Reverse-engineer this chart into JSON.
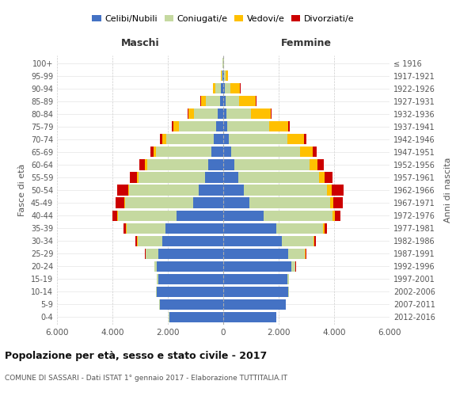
{
  "age_groups": [
    "0-4",
    "5-9",
    "10-14",
    "15-19",
    "20-24",
    "25-29",
    "30-34",
    "35-39",
    "40-44",
    "45-49",
    "50-54",
    "55-59",
    "60-64",
    "65-69",
    "70-74",
    "75-79",
    "80-84",
    "85-89",
    "90-94",
    "95-99",
    "100+"
  ],
  "birth_years": [
    "2012-2016",
    "2007-2011",
    "2002-2006",
    "1997-2001",
    "1992-1996",
    "1987-1991",
    "1982-1986",
    "1977-1981",
    "1972-1976",
    "1967-1971",
    "1962-1966",
    "1957-1961",
    "1952-1956",
    "1947-1951",
    "1942-1946",
    "1937-1941",
    "1932-1936",
    "1927-1931",
    "1922-1926",
    "1917-1921",
    "≤ 1916"
  ],
  "male": {
    "celibi": [
      1950,
      2300,
      2400,
      2350,
      2400,
      2350,
      2200,
      2100,
      1700,
      1100,
      900,
      650,
      550,
      420,
      350,
      250,
      200,
      120,
      80,
      30,
      10
    ],
    "coniugati": [
      10,
      20,
      30,
      50,
      80,
      450,
      900,
      1400,
      2100,
      2450,
      2500,
      2400,
      2200,
      2000,
      1700,
      1350,
      850,
      500,
      200,
      40,
      10
    ],
    "vedovi": [
      0,
      0,
      0,
      0,
      5,
      10,
      10,
      15,
      20,
      30,
      40,
      60,
      80,
      100,
      150,
      200,
      200,
      180,
      80,
      20,
      5
    ],
    "divorziati": [
      0,
      0,
      0,
      5,
      10,
      30,
      50,
      80,
      180,
      300,
      380,
      250,
      200,
      120,
      80,
      50,
      40,
      20,
      5,
      0,
      0
    ]
  },
  "female": {
    "nubili": [
      1900,
      2250,
      2350,
      2300,
      2450,
      2350,
      2100,
      1900,
      1450,
      950,
      750,
      550,
      400,
      280,
      200,
      150,
      100,
      80,
      60,
      30,
      10
    ],
    "coniugate": [
      10,
      20,
      30,
      60,
      150,
      600,
      1150,
      1700,
      2500,
      2900,
      3000,
      2900,
      2700,
      2500,
      2100,
      1500,
      900,
      500,
      200,
      50,
      10
    ],
    "vedove": [
      0,
      0,
      0,
      5,
      10,
      20,
      30,
      50,
      80,
      120,
      150,
      200,
      300,
      450,
      600,
      700,
      700,
      600,
      350,
      100,
      10
    ],
    "divorziate": [
      0,
      0,
      0,
      5,
      10,
      30,
      50,
      80,
      200,
      350,
      450,
      300,
      220,
      150,
      100,
      60,
      30,
      20,
      10,
      5,
      0
    ]
  },
  "colors": {
    "celibi": "#4472c4",
    "coniugati": "#c5d9a0",
    "vedovi": "#ffc000",
    "divorziati": "#cc0000"
  },
  "title": "Popolazione per età, sesso e stato civile - 2017",
  "subtitle": "COMUNE DI SASSARI - Dati ISTAT 1° gennaio 2017 - Elaborazione TUTTITALIA.IT",
  "xlabel_left": "Maschi",
  "xlabel_right": "Femmine",
  "ylabel_left": "Fasce di età",
  "ylabel_right": "Anni di nascita",
  "xlim": 6000,
  "legend_labels": [
    "Celibi/Nubili",
    "Coniugati/e",
    "Vedovi/e",
    "Divorziati/e"
  ]
}
